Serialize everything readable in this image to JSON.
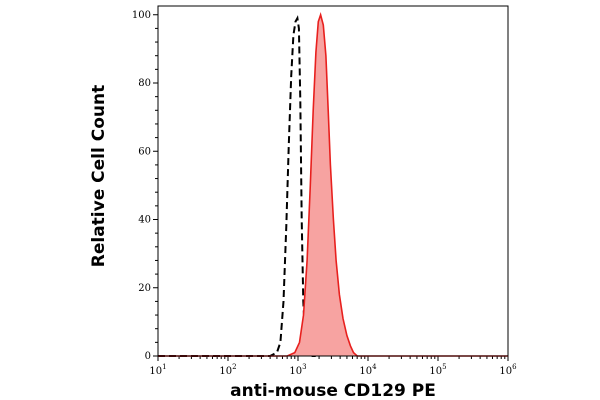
{
  "chart_data": {
    "type": "area",
    "xlabel": "anti-mouse CD129 PE",
    "ylabel": "Relative Cell Count",
    "x_scale": "log",
    "xlim": [
      10,
      1000000
    ],
    "ylim": [
      0,
      100
    ],
    "grid": false,
    "x_ticks": [
      {
        "value": 10,
        "base": "10",
        "exp": "1"
      },
      {
        "value": 100,
        "base": "10",
        "exp": "2"
      },
      {
        "value": 1000,
        "base": "10",
        "exp": "3"
      },
      {
        "value": 10000,
        "base": "10",
        "exp": "4"
      },
      {
        "value": 100000,
        "base": "10",
        "exp": "5"
      },
      {
        "value": 1000000,
        "base": "10",
        "exp": "6"
      }
    ],
    "y_ticks": [
      {
        "value": 0,
        "label": "0"
      },
      {
        "value": 20,
        "label": "20"
      },
      {
        "value": 40,
        "label": "40"
      },
      {
        "value": 60,
        "label": "60"
      },
      {
        "value": 80,
        "label": "80"
      },
      {
        "value": 100,
        "label": "100"
      }
    ],
    "series": [
      {
        "style": "dashed-outline",
        "color": "#000000",
        "x": [
          10,
          400,
          500,
          560,
          620,
          680,
          740,
          800,
          860,
          920,
          980,
          1030,
          1080,
          1130,
          1190,
          1260,
          1350,
          1450,
          1600,
          1900
        ],
        "y": [
          0,
          0,
          1,
          4,
          16,
          38,
          62,
          82,
          94,
          98,
          99,
          96,
          75,
          40,
          16,
          6,
          2,
          1,
          0,
          0
        ]
      },
      {
        "style": "filled",
        "color": "#e8201e",
        "fill": "#f7a3a1",
        "x": [
          10,
          700,
          900,
          1050,
          1200,
          1350,
          1500,
          1650,
          1800,
          1950,
          2100,
          2300,
          2500,
          2700,
          2900,
          3200,
          3500,
          3900,
          4400,
          5000,
          5600,
          6200,
          7000,
          8000,
          1000000
        ],
        "y": [
          0,
          0,
          1,
          4,
          12,
          28,
          50,
          72,
          89,
          98,
          100,
          97,
          88,
          72,
          56,
          40,
          28,
          18,
          11,
          6,
          3,
          1,
          0,
          0,
          0
        ]
      }
    ]
  }
}
